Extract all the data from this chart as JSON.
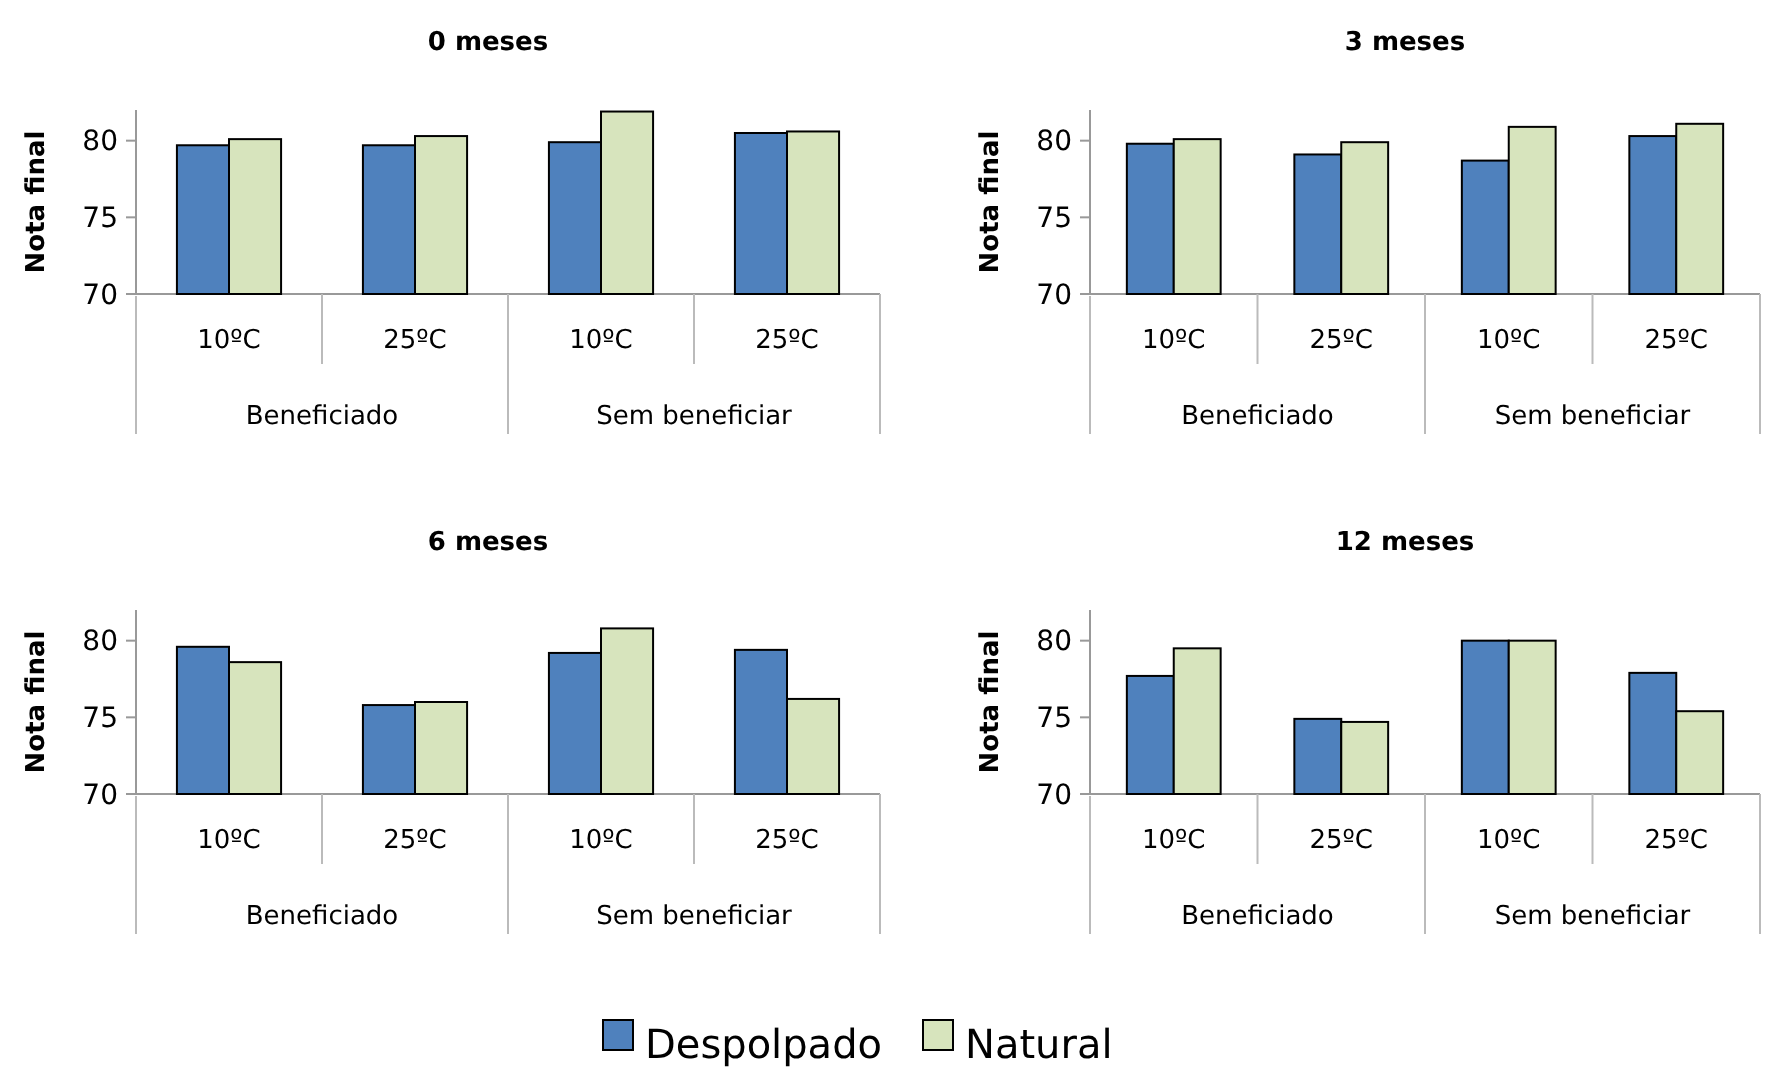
{
  "chart_data": [
    {
      "type": "bar",
      "title": "0 meses",
      "ylabel": "Nota final",
      "categories": [
        "10ºC",
        "25ºC",
        "10ºC",
        "25ºC"
      ],
      "annotations": [
        "Beneficiado",
        "Sem beneficiar"
      ],
      "ylim": [
        70,
        82
      ],
      "yticks": [
        70,
        75,
        80
      ],
      "series": [
        {
          "color": "#4f81bd",
          "values": [
            79.7,
            79.7,
            79.9,
            80.5
          ]
        },
        {
          "color": "#d7e4bd",
          "values": [
            80.1,
            80.3,
            81.9,
            80.6
          ]
        }
      ]
    },
    {
      "type": "bar",
      "title": "3 meses",
      "ylabel": "Nota final",
      "categories": [
        "10ºC",
        "25ºC",
        "10ºC",
        "25ºC"
      ],
      "annotations": [
        "Beneficiado",
        "Sem beneficiar"
      ],
      "ylim": [
        70,
        82
      ],
      "yticks": [
        70,
        75,
        80
      ],
      "series": [
        {
          "color": "#4f81bd",
          "values": [
            79.8,
            79.1,
            78.7,
            80.3
          ]
        },
        {
          "color": "#d7e4bd",
          "values": [
            80.1,
            79.9,
            80.9,
            81.1
          ]
        }
      ]
    },
    {
      "type": "bar",
      "title": "6 meses",
      "ylabel": "Nota final",
      "categories": [
        "10ºC",
        "25ºC",
        "10ºC",
        "25ºC"
      ],
      "annotations": [
        "Beneficiado",
        "Sem beneficiar"
      ],
      "ylim": [
        70,
        82
      ],
      "yticks": [
        70,
        75,
        80
      ],
      "series": [
        {
          "color": "#4f81bd",
          "values": [
            79.6,
            75.8,
            79.2,
            79.4
          ]
        },
        {
          "color": "#d7e4bd",
          "values": [
            78.6,
            76.0,
            80.8,
            76.2
          ]
        }
      ]
    },
    {
      "type": "bar",
      "title": "12 meses",
      "ylabel": "Nota final",
      "categories": [
        "10ºC",
        "25ºC",
        "10ºC",
        "25ºC"
      ],
      "annotations": [
        "Beneficiado",
        "Sem beneficiar"
      ],
      "ylim": [
        70,
        82
      ],
      "yticks": [
        70,
        75,
        80
      ],
      "legend": "bottom",
      "series": [
        {
          "name": "Despolpado",
          "color": "#4f81bd",
          "values": [
            77.7,
            74.9,
            80.0,
            77.9
          ]
        },
        {
          "name": "Natural",
          "color": "#d7e4bd",
          "values": [
            79.5,
            74.7,
            80.0,
            75.4
          ]
        }
      ]
    }
  ]
}
